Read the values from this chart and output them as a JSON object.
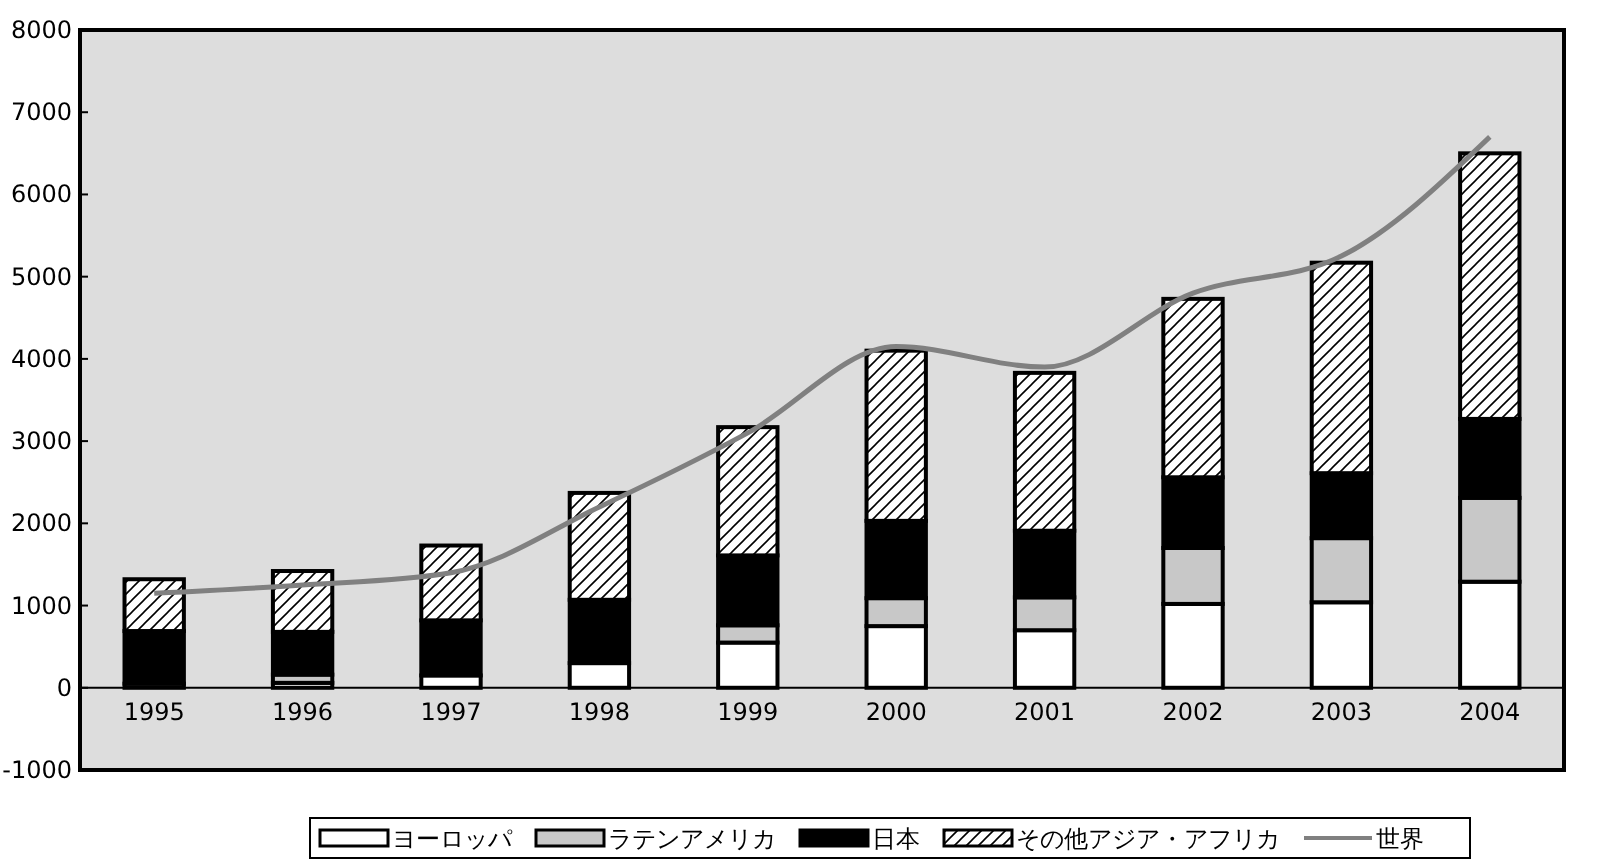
{
  "chart_data": {
    "type": "bar",
    "stacked": true,
    "categories": [
      "1995",
      "1996",
      "1997",
      "1998",
      "1999",
      "2000",
      "2001",
      "2002",
      "2003",
      "2004"
    ],
    "series": [
      {
        "name": "ヨーロッパ",
        "color": "#ffffff",
        "values": [
          50,
          60,
          150,
          300,
          550,
          750,
          700,
          1020,
          1040,
          1290
        ]
      },
      {
        "name": "ラテンアメリカ",
        "color": "#c8c8c8",
        "values": [
          null,
          100,
          0,
          0,
          210,
          340,
          400,
          680,
          780,
          1020
        ]
      },
      {
        "name": "日本",
        "color": "#000000",
        "values": [
          640,
          520,
          670,
          770,
          850,
          940,
          810,
          860,
          790,
          960
        ]
      },
      {
        "name": "その他アジア・アフリカ",
        "color": "#000000",
        "values": [
          630,
          740,
          910,
          1300,
          1560,
          2070,
          1920,
          2170,
          2560,
          3230
        ]
      },
      {
        "name": "世界",
        "type": "line",
        "color": "#808080",
        "values": [
          1150,
          1250,
          1400,
          2200,
          3100,
          4150,
          3900,
          4800,
          5250,
          6700
        ]
      }
    ],
    "ylim": [
      -1000,
      8000
    ],
    "yticks": [
      -1000,
      0,
      1000,
      2000,
      3000,
      4000,
      5000,
      6000,
      7000,
      8000
    ],
    "grid": false,
    "legend": "bottom",
    "marker": "none",
    "line_style": "solid"
  }
}
